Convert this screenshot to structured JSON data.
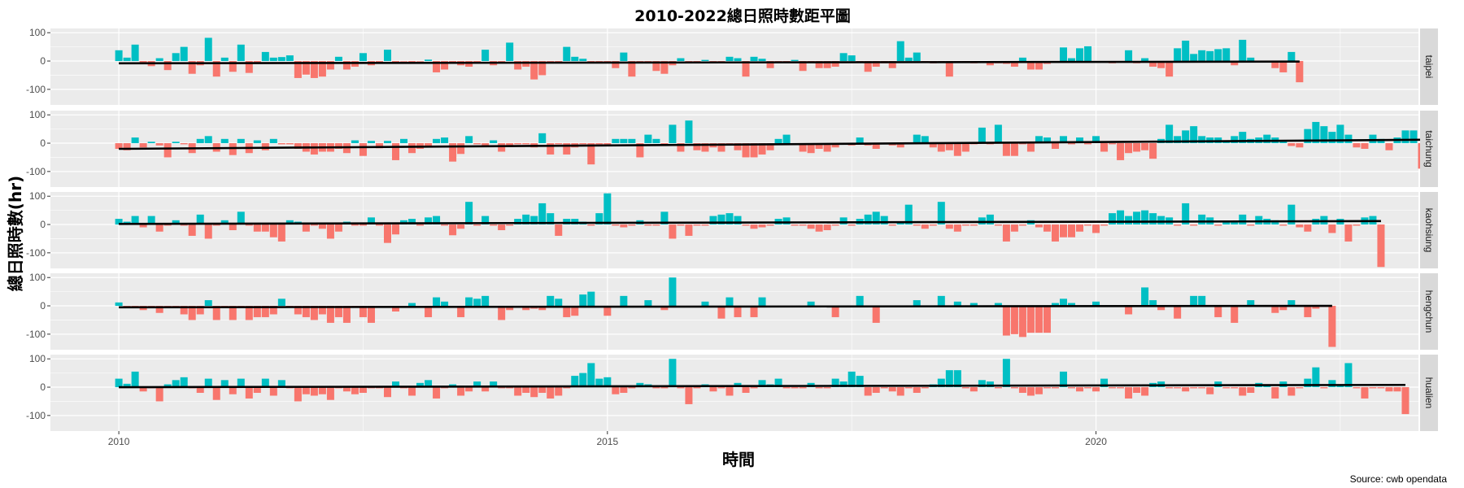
{
  "chart_data": {
    "type": "bar",
    "title": "2010-2022總日照時數距平圖",
    "xlabel": "時間",
    "ylabel": "總日照時數(hr)",
    "caption": "Source: cwb opendata",
    "x_start": "2010-01",
    "x_end": "2022-12",
    "xlim": [
      2009.3,
      2023.3
    ],
    "ylim": [
      -155,
      115
    ],
    "x_ticks": [
      2010,
      2015,
      2020
    ],
    "x_tick_labels": [
      "2010",
      "2015",
      "2020"
    ],
    "y_ticks": [
      -100,
      0,
      100
    ],
    "y_tick_labels": [
      "-100",
      "0",
      "100"
    ],
    "grid": true,
    "legend": "none",
    "colors": {
      "positive": "#00BFC4",
      "negative": "#F8766D",
      "trend": "#000000",
      "panel_bg": "#EBEBEB",
      "strip_bg": "#D9D9D9",
      "grid": "#FFFFFF"
    },
    "series": [
      {
        "name": "taipei",
        "trend": [
          -8,
          -2
        ],
        "values": [
          38,
          12,
          58,
          -5,
          -18,
          10,
          -32,
          28,
          50,
          -45,
          -15,
          82,
          -55,
          12,
          -38,
          58,
          -42,
          -10,
          32,
          12,
          14,
          20,
          -60,
          -48,
          -60,
          -55,
          -30,
          15,
          -30,
          -20,
          28,
          -15,
          -5,
          40,
          -4,
          -2,
          -4,
          -2,
          5,
          -40,
          -30,
          -8,
          -15,
          -20,
          -5,
          40,
          -15,
          -4,
          65,
          -30,
          -20,
          -65,
          -50,
          -4,
          -8,
          50,
          15,
          8,
          -4,
          -4,
          -8,
          -25,
          30,
          -55,
          -4,
          -8,
          -35,
          -45,
          -15,
          10,
          -8,
          -4,
          4,
          -4,
          -4,
          15,
          10,
          -55,
          15,
          8,
          -25,
          -4,
          -4,
          4,
          -35,
          -4,
          -25,
          -25,
          -20,
          28,
          20,
          -4,
          -38,
          -20,
          -8,
          -25,
          70,
          12,
          30,
          -4,
          -8,
          -4,
          -55,
          -4,
          -4,
          -8,
          -4,
          -15,
          -8,
          -10,
          -20,
          12,
          -30,
          -30,
          -10,
          -4,
          48,
          10,
          45,
          52,
          -4,
          -4,
          -8,
          -4,
          38,
          -8,
          10,
          -20,
          -25,
          -55,
          45,
          72,
          25,
          38,
          35,
          42,
          45,
          -15,
          75,
          12,
          -4,
          -4,
          -25,
          -40,
          32,
          -75
        ]
      },
      {
        "name": "taichung",
        "trend": [
          -20,
          12
        ],
        "values": [
          -20,
          -25,
          20,
          -15,
          5,
          -8,
          -50,
          5,
          -4,
          -35,
          15,
          25,
          -30,
          15,
          -42,
          15,
          -35,
          10,
          -25,
          15,
          -4,
          -4,
          -20,
          -30,
          -40,
          -30,
          -30,
          -20,
          -35,
          10,
          -45,
          8,
          -18,
          8,
          -60,
          15,
          -35,
          -20,
          -15,
          15,
          20,
          -65,
          -38,
          25,
          -4,
          -8,
          10,
          -30,
          -8,
          -4,
          -4,
          -15,
          35,
          -40,
          -4,
          -40,
          -15,
          -4,
          -75,
          -4,
          -4,
          15,
          15,
          15,
          -50,
          30,
          15,
          -4,
          65,
          -30,
          80,
          -25,
          -30,
          -15,
          -30,
          -4,
          -25,
          -50,
          -50,
          -40,
          -25,
          15,
          30,
          -4,
          -30,
          -35,
          -20,
          -30,
          -15,
          -4,
          -8,
          20,
          -8,
          -20,
          -4,
          -8,
          -15,
          -4,
          30,
          25,
          -15,
          -30,
          -25,
          -45,
          -30,
          -4,
          55,
          -4,
          65,
          -45,
          -45,
          -4,
          -30,
          25,
          20,
          -20,
          25,
          -4,
          20,
          -4,
          25,
          -30,
          -4,
          -60,
          -35,
          -30,
          -25,
          -55,
          15,
          65,
          25,
          45,
          60,
          25,
          20,
          20,
          10,
          25,
          40,
          15,
          20,
          30,
          20,
          10,
          -10,
          -15,
          50,
          75,
          60,
          40,
          65,
          30,
          -15,
          -20,
          30,
          15,
          -25,
          20,
          45,
          45,
          -90
        ]
      },
      {
        "name": "kaohsiung",
        "trend": [
          2,
          12
        ],
        "values": [
          20,
          10,
          30,
          -10,
          30,
          -25,
          -4,
          15,
          -4,
          -40,
          35,
          -50,
          -4,
          15,
          -20,
          45,
          -4,
          -25,
          -25,
          -45,
          -60,
          15,
          10,
          -25,
          -4,
          -15,
          -50,
          -25,
          10,
          -4,
          -4,
          25,
          -4,
          -65,
          -35,
          15,
          20,
          -4,
          25,
          30,
          -4,
          -38,
          -15,
          80,
          -4,
          30,
          -4,
          -20,
          -4,
          20,
          35,
          30,
          75,
          40,
          -40,
          20,
          20,
          10,
          -4,
          40,
          110,
          -4,
          -10,
          -4,
          15,
          -4,
          -4,
          45,
          -50,
          -4,
          -40,
          -4,
          -4,
          30,
          35,
          40,
          30,
          -4,
          -15,
          -10,
          -4,
          20,
          25,
          -4,
          -4,
          -15,
          -25,
          -20,
          -4,
          25,
          -4,
          20,
          35,
          45,
          30,
          -4,
          10,
          70,
          -4,
          -15,
          -4,
          80,
          -15,
          -25,
          -4,
          -4,
          25,
          35,
          -4,
          -60,
          -25,
          -4,
          15,
          -10,
          -25,
          -60,
          -45,
          -45,
          -25,
          -4,
          -30,
          -4,
          40,
          50,
          30,
          45,
          50,
          40,
          30,
          25,
          -4,
          75,
          -4,
          35,
          25,
          -4,
          10,
          10,
          35,
          -4,
          30,
          20,
          15,
          -4,
          70,
          -10,
          -25,
          20,
          30,
          -30,
          20,
          -60,
          -4,
          25,
          30,
          -150
        ]
      },
      {
        "name": "hengchun",
        "trend": [
          -5,
          0
        ],
        "values": [
          12,
          -4,
          -4,
          -15,
          -4,
          -25,
          -4,
          -8,
          -30,
          -50,
          -30,
          20,
          -50,
          -4,
          -50,
          -4,
          -50,
          -40,
          -40,
          -30,
          25,
          -4,
          -30,
          -40,
          -50,
          -30,
          -60,
          -40,
          -60,
          -4,
          -40,
          -60,
          -4,
          -4,
          -20,
          -4,
          10,
          -4,
          -40,
          30,
          15,
          -4,
          -40,
          30,
          25,
          35,
          -4,
          -50,
          -15,
          -4,
          -15,
          -10,
          -15,
          35,
          25,
          -40,
          -35,
          40,
          50,
          -4,
          -35,
          -4,
          35,
          -4,
          -4,
          20,
          -4,
          -15,
          100,
          -4,
          -4,
          -4,
          15,
          -4,
          -45,
          30,
          -40,
          -4,
          -40,
          30,
          -4,
          -4,
          -4,
          -4,
          -4,
          15,
          -4,
          -4,
          -40,
          -4,
          -4,
          35,
          -4,
          -60,
          -4,
          -4,
          -4,
          -4,
          20,
          -4,
          -4,
          35,
          -4,
          15,
          -4,
          10,
          -4,
          -4,
          10,
          -105,
          -100,
          -110,
          -95,
          -95,
          -95,
          10,
          25,
          10,
          -4,
          -4,
          15,
          -4,
          -4,
          -4,
          -30,
          -4,
          65,
          20,
          -15,
          -4,
          -45,
          -4,
          35,
          35,
          -4,
          -40,
          -4,
          -60,
          -4,
          20,
          -4,
          -4,
          -25,
          -15,
          20,
          -4,
          -40,
          -10,
          -4,
          -145
        ]
      },
      {
        "name": "hualien",
        "trend": [
          0,
          8
        ],
        "values": [
          30,
          12,
          55,
          -15,
          -4,
          -50,
          10,
          25,
          35,
          -4,
          -20,
          30,
          -45,
          25,
          -25,
          30,
          -40,
          -20,
          30,
          -30,
          25,
          -4,
          -50,
          -25,
          -30,
          -25,
          -45,
          -4,
          -15,
          -25,
          -20,
          -4,
          -4,
          -35,
          20,
          -4,
          -30,
          15,
          25,
          -40,
          -4,
          10,
          -30,
          -15,
          20,
          -15,
          20,
          -4,
          -4,
          -30,
          -20,
          -35,
          -20,
          -40,
          -30,
          -4,
          40,
          50,
          85,
          30,
          35,
          -25,
          -20,
          -4,
          15,
          10,
          -4,
          -4,
          100,
          -4,
          -60,
          -4,
          10,
          -15,
          -4,
          -30,
          15,
          -20,
          -4,
          25,
          10,
          30,
          -4,
          -4,
          -4,
          15,
          -4,
          -4,
          30,
          20,
          55,
          40,
          -30,
          -20,
          -4,
          -15,
          -30,
          -4,
          -20,
          -4,
          10,
          30,
          60,
          60,
          -4,
          -15,
          25,
          20,
          -4,
          100,
          -4,
          -20,
          -30,
          -25,
          -4,
          -4,
          55,
          -4,
          -15,
          -4,
          -15,
          30,
          -4,
          -4,
          -40,
          -20,
          -30,
          15,
          20,
          -4,
          -4,
          -15,
          -4,
          -4,
          -25,
          20,
          -4,
          -4,
          -30,
          -20,
          15,
          10,
          -40,
          20,
          -30,
          -4,
          30,
          70,
          -4,
          25,
          10,
          85,
          -4,
          -40,
          -4,
          -4,
          -15,
          -15,
          -95
        ]
      }
    ]
  }
}
